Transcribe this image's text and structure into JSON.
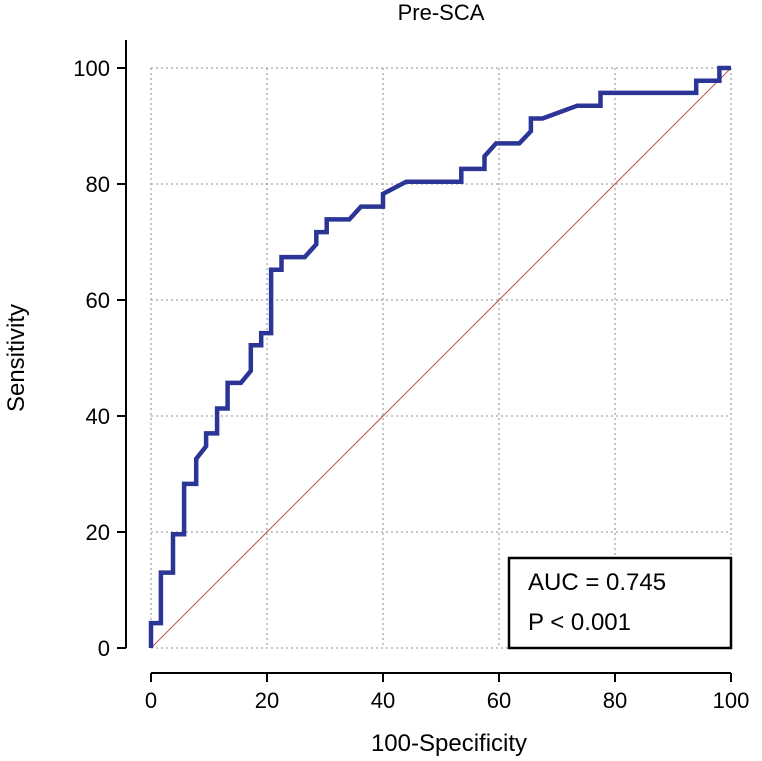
{
  "chart_data": {
    "type": "line",
    "title": "Pre-SCA",
    "xlabel": "100-Specificity",
    "ylabel": "Sensitivity",
    "xlim": [
      0,
      100
    ],
    "ylim": [
      0,
      100
    ],
    "x_ticks": [
      0,
      20,
      40,
      60,
      80,
      100
    ],
    "y_ticks": [
      0,
      20,
      40,
      60,
      80,
      100
    ],
    "grid": true,
    "series": [
      {
        "name": "ROC curve",
        "color": "#2b3596",
        "x": [
          0,
          0,
          1.7,
          1.7,
          3.8,
          3.8,
          5.7,
          5.7,
          7.8,
          7.8,
          9.5,
          9.5,
          11.4,
          11.4,
          13.2,
          13.2,
          15.5,
          17.2,
          17.2,
          19.0,
          19.0,
          20.7,
          20.7,
          22.5,
          22.5,
          26.5,
          28.5,
          28.5,
          30.3,
          30.3,
          34.2,
          36.2,
          36.2,
          40.0,
          40.0,
          44.0,
          53.5,
          53.5,
          57.5,
          57.5,
          59.5,
          59.5,
          63.5,
          65.5,
          65.5,
          67.5,
          73.5,
          77.5,
          77.5,
          79.5,
          94.0,
          94.0,
          98.0,
          98.0,
          100
        ],
        "y": [
          0,
          4.3,
          4.3,
          13.0,
          13.0,
          19.6,
          19.6,
          28.3,
          28.3,
          32.6,
          34.8,
          37.0,
          37.0,
          41.3,
          41.3,
          45.7,
          45.7,
          47.8,
          52.2,
          52.2,
          54.3,
          54.3,
          65.2,
          65.2,
          67.4,
          67.4,
          69.6,
          71.7,
          71.7,
          73.9,
          73.9,
          76.1,
          76.1,
          76.1,
          78.3,
          80.4,
          80.4,
          82.6,
          82.6,
          84.8,
          87.0,
          87.0,
          87.0,
          89.1,
          91.3,
          91.3,
          93.5,
          93.5,
          95.7,
          95.7,
          95.7,
          97.8,
          97.8,
          100,
          100
        ]
      },
      {
        "name": "Reference line",
        "color": "#c0504d",
        "x": [
          0,
          100
        ],
        "y": [
          0,
          100
        ]
      }
    ],
    "annotations": {
      "auc": "AUC = 0.745",
      "p_value": "P < 0.001"
    }
  }
}
